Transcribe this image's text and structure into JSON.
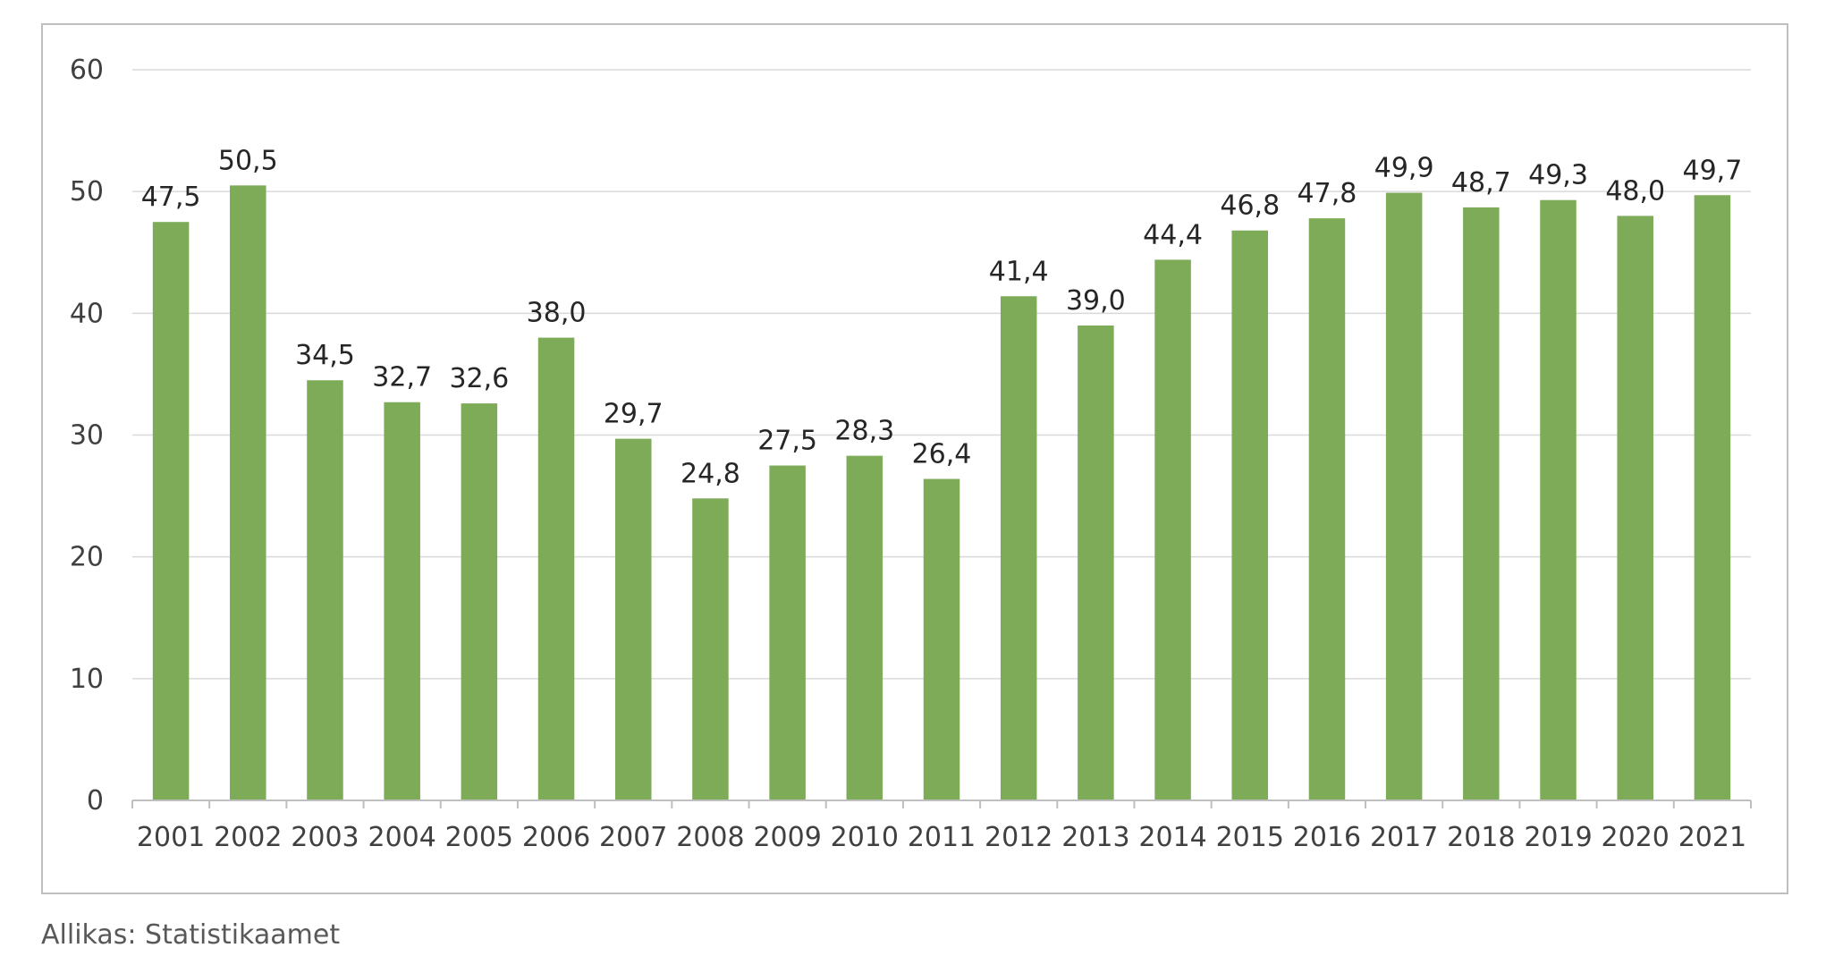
{
  "chart_data": {
    "type": "bar",
    "categories": [
      "2001",
      "2002",
      "2003",
      "2004",
      "2005",
      "2006",
      "2007",
      "2008",
      "2009",
      "2010",
      "2011",
      "2012",
      "2013",
      "2014",
      "2015",
      "2016",
      "2017",
      "2018",
      "2019",
      "2020",
      "2021"
    ],
    "values": [
      47.5,
      50.5,
      34.5,
      32.7,
      32.6,
      38.0,
      29.7,
      24.8,
      27.5,
      28.3,
      26.4,
      41.4,
      39.0,
      44.4,
      46.8,
      47.8,
      49.9,
      48.7,
      49.3,
      48.0,
      49.7
    ],
    "value_labels": [
      "47,5",
      "50,5",
      "34,5",
      "32,7",
      "32,6",
      "38,0",
      "29,7",
      "24,8",
      "27,5",
      "28,3",
      "26,4",
      "41,4",
      "39,0",
      "44,4",
      "46,8",
      "47,8",
      "49,9",
      "48,7",
      "49,3",
      "48,0",
      "49,7"
    ],
    "y_ticks": [
      0,
      10,
      20,
      30,
      40,
      50,
      60
    ],
    "ylim": [
      0,
      60
    ],
    "title": "",
    "xlabel": "",
    "ylabel": "",
    "grid": true,
    "bar_color": "#7dab58",
    "grid_color": "#d9d9d9",
    "legend": "none"
  },
  "source": "Allikas: Statistikaamet"
}
